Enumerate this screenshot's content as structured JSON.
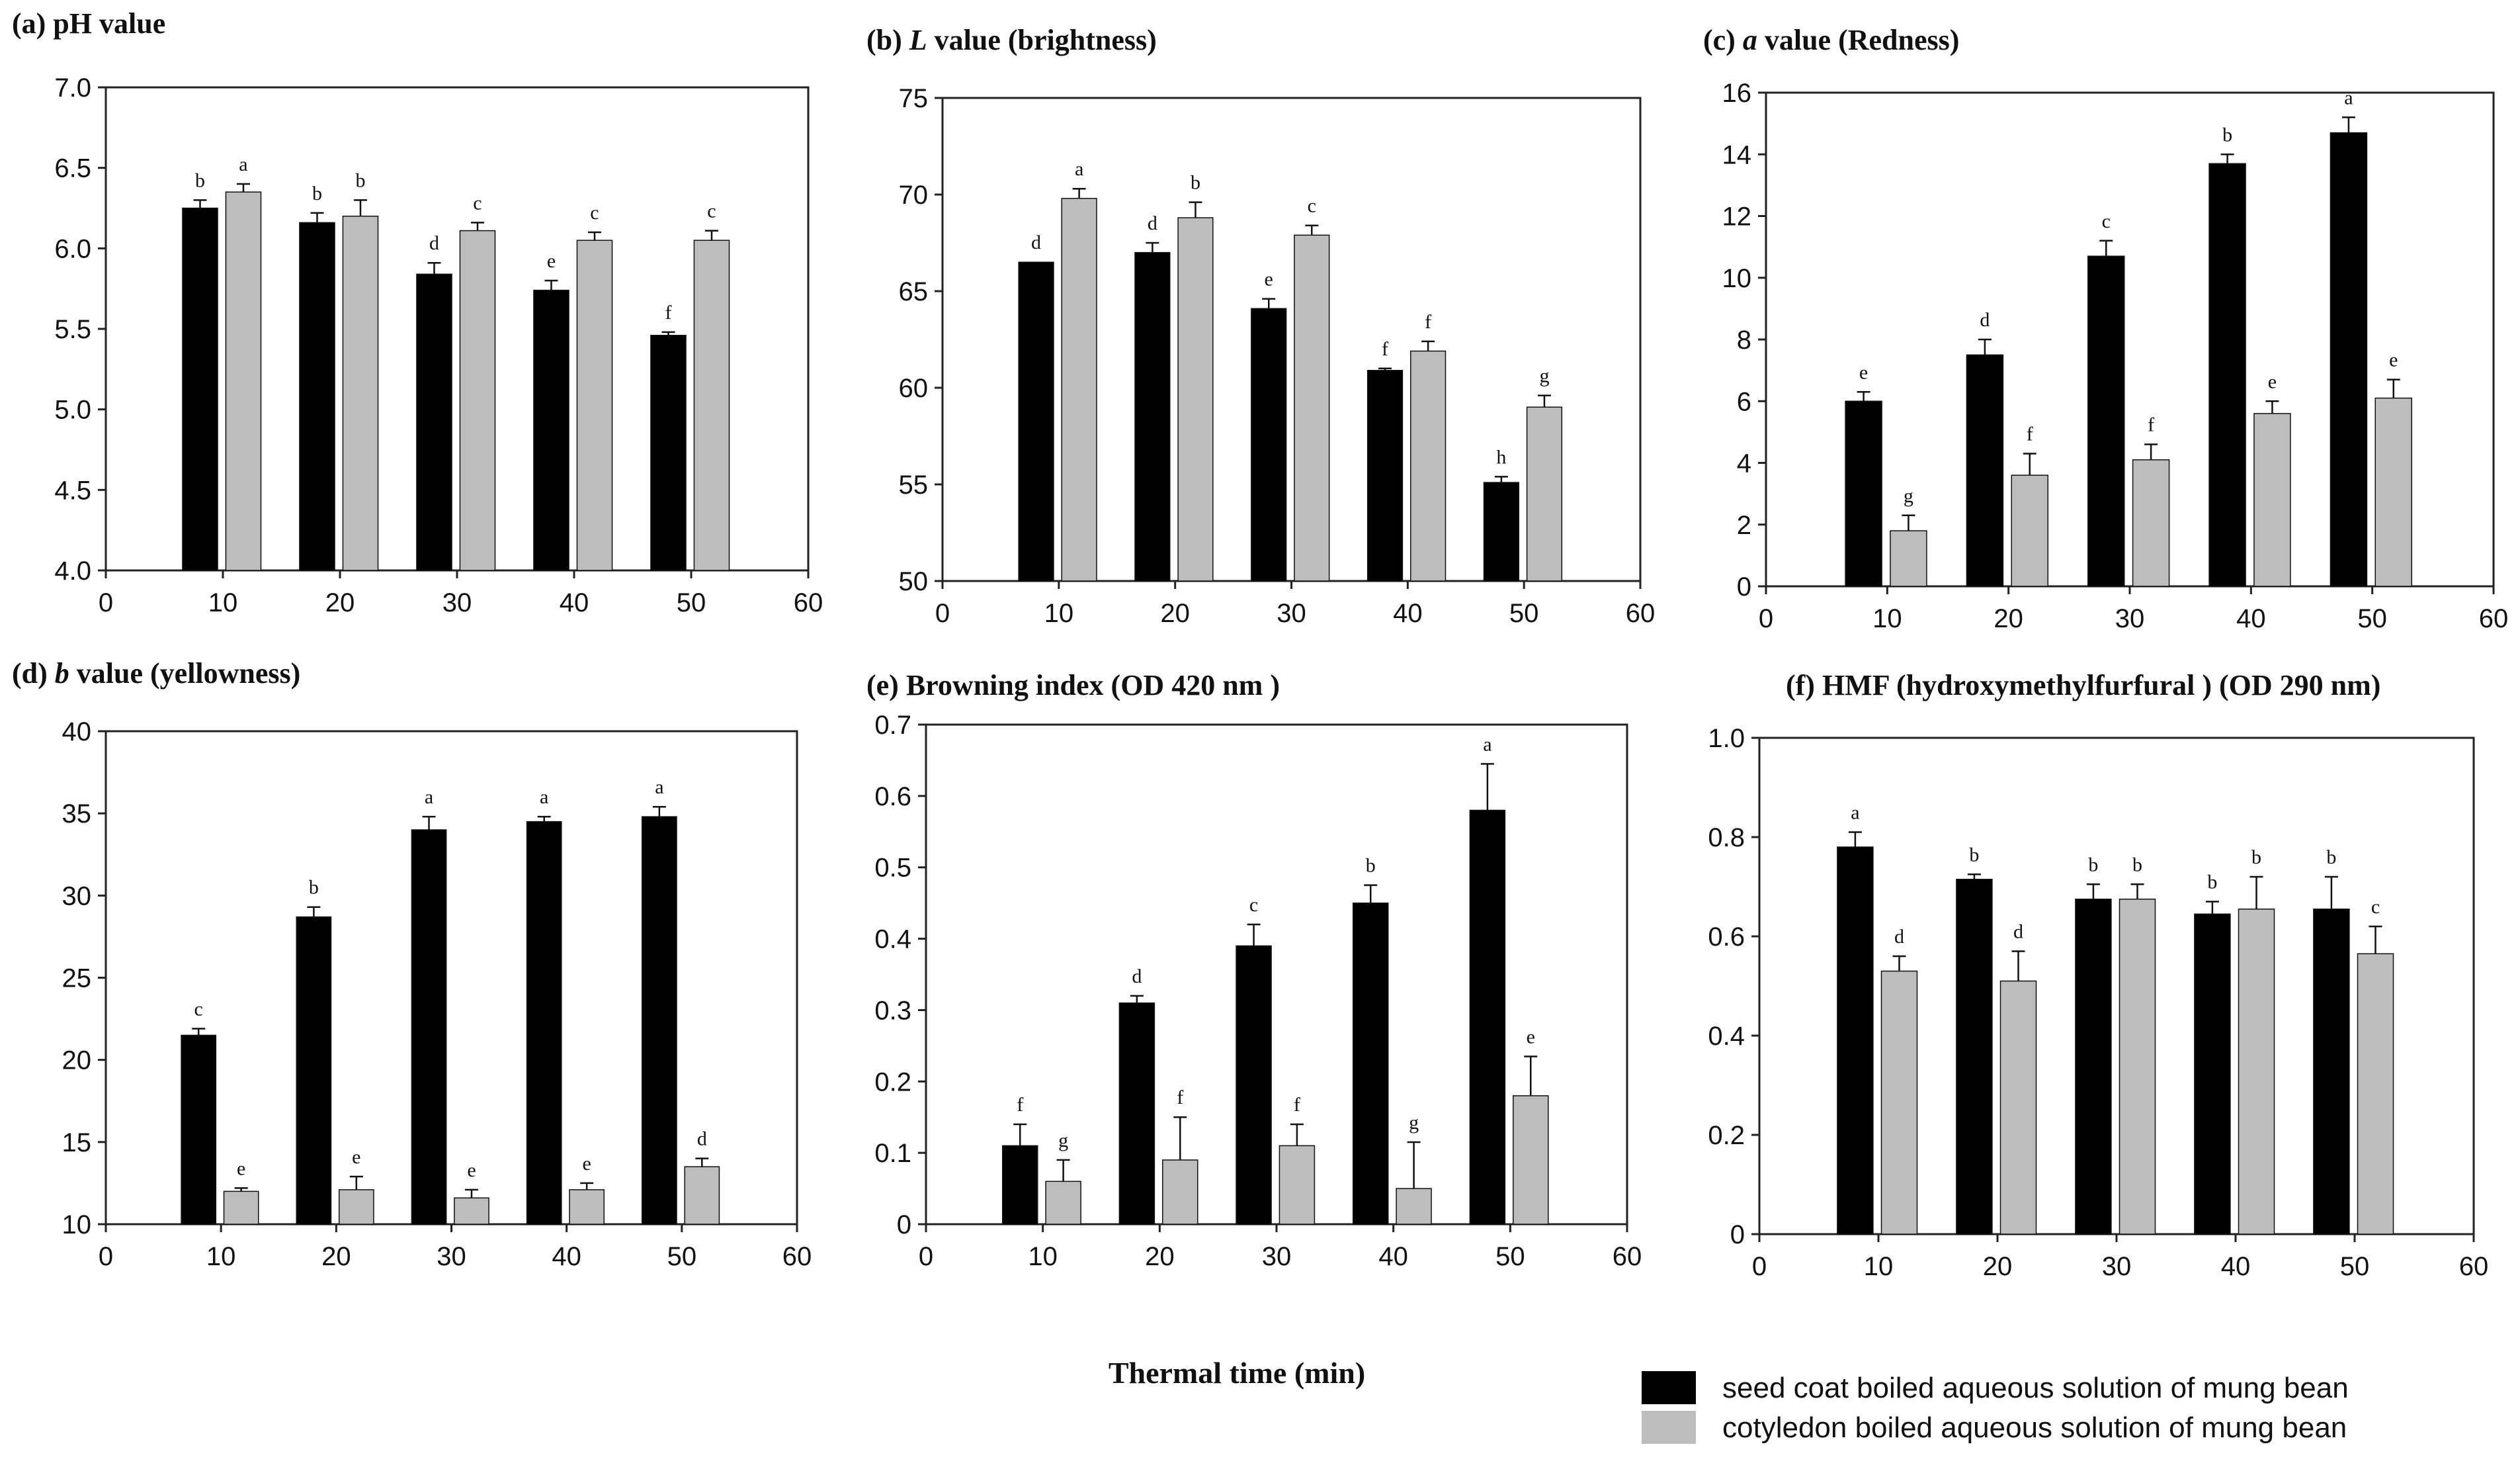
{
  "colors": {
    "seed_coat": "#000000",
    "cotyledon": "#bdbdbd",
    "axis": "#222222"
  },
  "xlabel": "Thermal time (min)",
  "legend": [
    {
      "label": "seed coat  boiled aqueous solution of mung bean",
      "color": "#000000"
    },
    {
      "label": "cotyledon  boiled aqueous solution of mung bean",
      "color": "#bdbdbd"
    }
  ],
  "chart_data": [
    {
      "type": "bar",
      "title_parts": [
        {
          "text": "(a) pH value",
          "italic": false
        }
      ],
      "x": [
        10,
        20,
        30,
        40,
        50
      ],
      "xlim": [
        0,
        60
      ],
      "xticks": [
        0,
        10,
        20,
        30,
        40,
        50,
        60
      ],
      "ylim": [
        4.0,
        7.0
      ],
      "yticks": [
        "4.0",
        "4.5",
        "5.0",
        "5.5",
        "6.0",
        "6.5",
        "7.0"
      ],
      "series": [
        {
          "values": [
            6.25,
            6.16,
            5.84,
            5.74,
            5.46
          ],
          "errors": [
            0.05,
            0.06,
            0.07,
            0.06,
            0.02
          ],
          "letters": [
            "b",
            "b",
            "d",
            "e",
            "f"
          ]
        },
        {
          "values": [
            6.35,
            6.2,
            6.11,
            6.05,
            6.05
          ],
          "errors": [
            0.05,
            0.1,
            0.05,
            0.05,
            0.06
          ],
          "letters": [
            "a",
            "b",
            "c",
            "c",
            "c"
          ]
        }
      ]
    },
    {
      "type": "bar",
      "title_parts": [
        {
          "text": "(b) ",
          "italic": false
        },
        {
          "text": "L",
          "italic": true
        },
        {
          "text": " value (brightness)",
          "italic": false
        }
      ],
      "x": [
        10,
        20,
        30,
        40,
        50
      ],
      "xlim": [
        0,
        60
      ],
      "xticks": [
        0,
        10,
        20,
        30,
        40,
        50,
        60
      ],
      "ylim": [
        50,
        75
      ],
      "yticks": [
        "50",
        "55",
        "60",
        "65",
        "70",
        "75"
      ],
      "series": [
        {
          "values": [
            66.5,
            67.0,
            64.1,
            60.9,
            55.1
          ],
          "errors": [
            0.0,
            0.5,
            0.5,
            0.1,
            0.3
          ],
          "letters": [
            "d",
            "d",
            "e",
            "f",
            "h"
          ]
        },
        {
          "values": [
            69.8,
            68.8,
            67.9,
            61.9,
            59.0
          ],
          "errors": [
            0.5,
            0.8,
            0.5,
            0.5,
            0.6
          ],
          "letters": [
            "a",
            "b",
            "c",
            "f",
            "g"
          ]
        }
      ]
    },
    {
      "type": "bar",
      "title_parts": [
        {
          "text": "(c) ",
          "italic": false
        },
        {
          "text": "a",
          "italic": true
        },
        {
          "text": " value (Redness)",
          "italic": false
        }
      ],
      "x": [
        10,
        20,
        30,
        40,
        50
      ],
      "xlim": [
        0,
        60
      ],
      "xticks": [
        0,
        10,
        20,
        30,
        40,
        50,
        60
      ],
      "ylim": [
        0,
        16
      ],
      "yticks": [
        "0",
        "2",
        "4",
        "6",
        "8",
        "10",
        "12",
        "14",
        "16"
      ],
      "series": [
        {
          "values": [
            6.0,
            7.5,
            10.7,
            13.7,
            14.7
          ],
          "errors": [
            0.3,
            0.5,
            0.5,
            0.3,
            0.5
          ],
          "letters": [
            "e",
            "d",
            "c",
            "b",
            "a"
          ]
        },
        {
          "values": [
            1.8,
            3.6,
            4.1,
            5.6,
            6.1
          ],
          "errors": [
            0.5,
            0.7,
            0.5,
            0.4,
            0.6
          ],
          "letters": [
            "g",
            "f",
            "f",
            "e",
            "e"
          ]
        }
      ]
    },
    {
      "type": "bar",
      "title_parts": [
        {
          "text": "(d) ",
          "italic": false
        },
        {
          "text": "b",
          "italic": true
        },
        {
          "text": " value (yellowness)",
          "italic": false
        }
      ],
      "x": [
        10,
        20,
        30,
        40,
        50
      ],
      "xlim": [
        0,
        60
      ],
      "xticks": [
        0,
        10,
        20,
        30,
        40,
        50,
        60
      ],
      "ylim": [
        10,
        40
      ],
      "yticks": [
        "10",
        "15",
        "20",
        "25",
        "30",
        "35",
        "40"
      ],
      "series": [
        {
          "values": [
            21.5,
            28.7,
            34.0,
            34.5,
            34.8
          ],
          "errors": [
            0.4,
            0.6,
            0.8,
            0.3,
            0.6
          ],
          "letters": [
            "c",
            "b",
            "a",
            "a",
            "a"
          ]
        },
        {
          "values": [
            12.0,
            12.1,
            11.6,
            12.1,
            13.5
          ],
          "errors": [
            0.2,
            0.8,
            0.5,
            0.4,
            0.5
          ],
          "letters": [
            "e",
            "e",
            "e",
            "e",
            "d"
          ]
        }
      ]
    },
    {
      "type": "bar",
      "title_parts": [
        {
          "text": "(e) Browning index (OD 420 nm )",
          "italic": false
        }
      ],
      "x": [
        10,
        20,
        30,
        40,
        50
      ],
      "xlim": [
        0,
        60
      ],
      "xticks": [
        0,
        10,
        20,
        30,
        40,
        50,
        60
      ],
      "ylim": [
        0,
        0.7
      ],
      "yticks": [
        "0",
        "0.1",
        "0.2",
        "0.3",
        "0.4",
        "0.5",
        "0.6",
        "0.7"
      ],
      "series": [
        {
          "values": [
            0.11,
            0.31,
            0.39,
            0.45,
            0.58
          ],
          "errors": [
            0.03,
            0.01,
            0.03,
            0.025,
            0.065
          ],
          "letters": [
            "f",
            "d",
            "c",
            "b",
            "a"
          ]
        },
        {
          "values": [
            0.06,
            0.09,
            0.11,
            0.05,
            0.18
          ],
          "errors": [
            0.03,
            0.06,
            0.03,
            0.065,
            0.055
          ],
          "letters": [
            "g",
            "f",
            "f",
            "g",
            "e"
          ]
        }
      ]
    },
    {
      "type": "bar",
      "title_parts": [
        {
          "text": "(f) HMF (hydroxymethylfurfural ) (OD 290 nm)",
          "italic": false
        }
      ],
      "x": [
        10,
        20,
        30,
        40,
        50
      ],
      "xlim": [
        0,
        60
      ],
      "xticks": [
        0,
        10,
        20,
        30,
        40,
        50,
        60
      ],
      "ylim": [
        0,
        1.0
      ],
      "yticks": [
        "0",
        "0.2",
        "0.4",
        "0.6",
        "0.8",
        "1.0"
      ],
      "series": [
        {
          "values": [
            0.78,
            0.715,
            0.675,
            0.645,
            0.655
          ],
          "errors": [
            0.03,
            0.01,
            0.03,
            0.025,
            0.065
          ],
          "letters": [
            "a",
            "b",
            "b",
            "b",
            "b"
          ]
        },
        {
          "values": [
            0.53,
            0.51,
            0.675,
            0.655,
            0.565
          ],
          "errors": [
            0.03,
            0.06,
            0.03,
            0.065,
            0.055
          ],
          "letters": [
            "d",
            "d",
            "b",
            "b",
            "c"
          ]
        }
      ]
    }
  ]
}
